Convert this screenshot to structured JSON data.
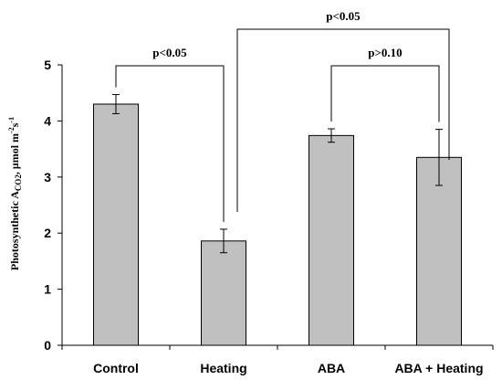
{
  "chart_data": {
    "type": "bar",
    "categories": [
      "Control",
      "Heating",
      "ABA",
      "ABA + Heating"
    ],
    "values": [
      4.3,
      1.86,
      3.74,
      3.35
    ],
    "errors": [
      0.17,
      0.21,
      0.12,
      0.5
    ],
    "ylim": [
      0,
      5
    ],
    "yticks": [
      "0",
      "1",
      "2",
      "3",
      "4",
      "5"
    ],
    "ylabel": {
      "main": "Photosynthetic A",
      "sub": "CO2",
      "unit": ", μmol m",
      "sup1": "-2",
      "mid": "s",
      "sup2": "-1"
    },
    "bar_color": "#c0c0c0",
    "comparisons": [
      {
        "from": 0,
        "to": 1,
        "label": "p<0.05",
        "level": 1
      },
      {
        "from": 2,
        "to": 3,
        "label": "p>0.10",
        "level": 1
      },
      {
        "from": 1,
        "to": 3,
        "label": "p<0.05",
        "level": 2
      }
    ]
  }
}
